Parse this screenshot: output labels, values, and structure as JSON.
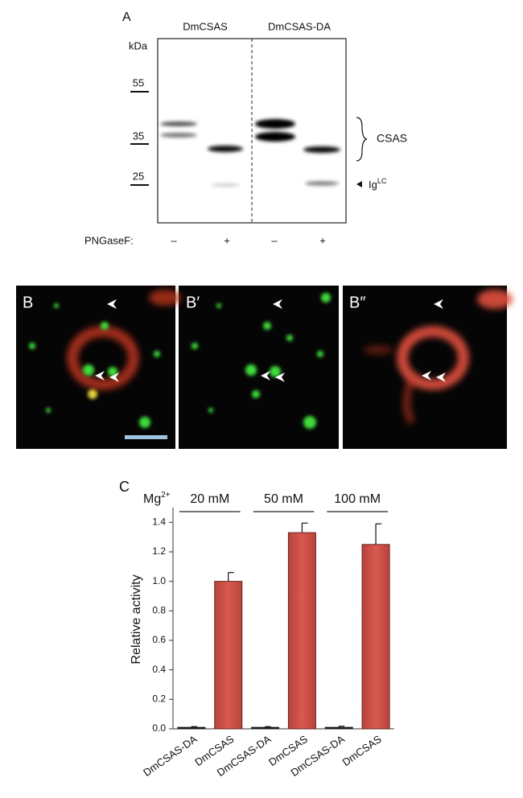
{
  "panel_a": {
    "label": "A",
    "lanes": [
      "DmCSAS",
      "DmCSAS-DA"
    ],
    "unit": "kDa",
    "markers": [
      "55",
      "35",
      "25"
    ],
    "bracket_label": "CSAS",
    "ig_label": "Ig",
    "ig_sup": "LC",
    "treatment": "PNGaseF:",
    "signs": [
      "–",
      "+",
      "–",
      "+"
    ]
  },
  "panel_b": {
    "labels": [
      "B",
      "B′",
      "B″"
    ]
  },
  "chart_data": {
    "type": "bar",
    "panel_label": "C",
    "group_title": "Mg",
    "group_title_sup": "2+",
    "groups": [
      "20 mM",
      "50 mM",
      "100 mM"
    ],
    "y_label": "Relative activity",
    "categories": [
      "DmCSAS-DA",
      "DmCSAS",
      "DmCSAS-DA",
      "DmCSAS",
      "DmCSAS-DA",
      "DmCSAS"
    ],
    "values": [
      0.01,
      1.0,
      0.01,
      1.33,
      0.01,
      1.25
    ],
    "errors": [
      0.005,
      0.06,
      0.005,
      0.065,
      0.008,
      0.14
    ],
    "colors": [
      "#1a1a1a",
      "#d0524a",
      "#1a1a1a",
      "#d0524a",
      "#1a1a1a",
      "#d0524a"
    ],
    "ylim": [
      0,
      1.5
    ],
    "yticks": [
      {
        "value": 0,
        "label": "0.0"
      },
      0.2,
      0.4,
      0.6,
      0.8,
      {
        "value": 1,
        "label": "1.0"
      },
      1.2,
      1.4
    ]
  }
}
